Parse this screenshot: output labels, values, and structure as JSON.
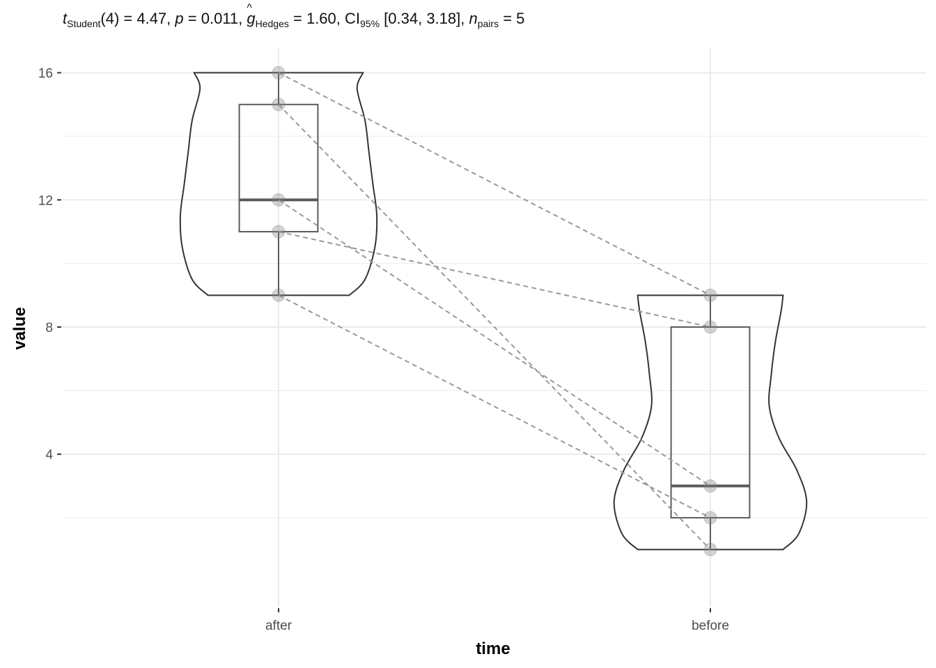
{
  "subtitle": {
    "t_symbol": "t",
    "t_sub": "Student",
    "t_rest": "(4) = 4.47, ",
    "p_symbol": "p",
    "p_rest": " = 0.011, ",
    "g_symbol": "g",
    "g_hat": "^",
    "g_sub": "Hedges",
    "g_rest": " = 1.60, CI",
    "ci_sub": "95%",
    "ci_rest": " [0.34, 3.18], ",
    "n_symbol": "n",
    "n_sub": "pairs",
    "n_rest": " = 5"
  },
  "chart_data": {
    "type": "violin-box-paired",
    "xlabel": "time",
    "ylabel": "value",
    "categories": [
      "after",
      "before"
    ],
    "y_ticks": [
      4,
      8,
      12,
      16
    ],
    "y_tick_labels": [
      "4",
      "8",
      "12",
      "16"
    ],
    "ylim": [
      -0.8,
      16.8
    ],
    "grid": true,
    "pairs": [
      {
        "after": 16,
        "before": 9
      },
      {
        "after": 15,
        "before": 1
      },
      {
        "after": 12,
        "before": 3
      },
      {
        "after": 11,
        "before": 8
      },
      {
        "after": 9,
        "before": 2
      }
    ],
    "boxplots": [
      {
        "category": "after",
        "min": 9,
        "q1": 11,
        "median": 12,
        "q3": 15,
        "max": 16
      },
      {
        "category": "before",
        "min": 1,
        "q1": 2,
        "median": 3,
        "q3": 8,
        "max": 9
      }
    ],
    "violins": [
      {
        "category": "after",
        "min": 9,
        "max": 16,
        "profile": [
          [
            9,
            0.72
          ],
          [
            9.5,
            0.88
          ],
          [
            10.5,
            0.98
          ],
          [
            11.5,
            1.0
          ],
          [
            12.5,
            0.96
          ],
          [
            13.5,
            0.92
          ],
          [
            14.5,
            0.88
          ],
          [
            15.5,
            0.8
          ],
          [
            16,
            0.86
          ]
        ]
      },
      {
        "category": "before",
        "min": 1,
        "max": 9,
        "profile": [
          [
            1,
            0.74
          ],
          [
            1.5,
            0.9
          ],
          [
            2.5,
            0.98
          ],
          [
            3.5,
            0.88
          ],
          [
            4.5,
            0.7
          ],
          [
            5.5,
            0.6
          ],
          [
            6.5,
            0.62
          ],
          [
            7.5,
            0.66
          ],
          [
            8.5,
            0.72
          ],
          [
            9,
            0.74
          ]
        ]
      }
    ],
    "colors": {
      "violin": "#333333",
      "box": "#5a5a5a",
      "points": "#808080",
      "lines": "#999999",
      "grid": "#ebebeb"
    }
  }
}
